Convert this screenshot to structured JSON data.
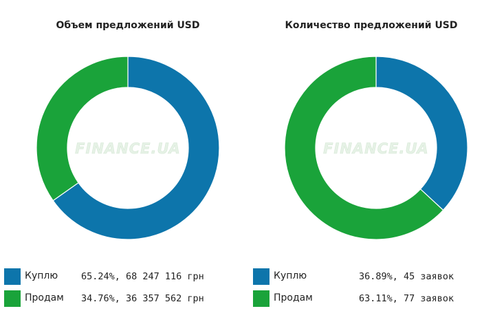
{
  "colors": {
    "buy": "#0d75ab",
    "sell": "#1aa33a",
    "edge": "#ffffff"
  },
  "watermark": "FINANCE.UA",
  "chart_data": [
    {
      "type": "pie",
      "title": "Объем предложений USD",
      "series": [
        {
          "name": "Куплю",
          "value": 65.24,
          "label": "65.24%, 68 247 116 грн"
        },
        {
          "name": "Продам",
          "value": 34.76,
          "label": "34.76%, 36 357 562 грн"
        }
      ]
    },
    {
      "type": "pie",
      "title": "Количество предложений USD",
      "series": [
        {
          "name": "Куплю",
          "value": 36.89,
          "label": "36.89%, 45 заявок"
        },
        {
          "name": "Продам",
          "value": 63.11,
          "label": "63.11%, 77 заявок"
        }
      ]
    }
  ]
}
